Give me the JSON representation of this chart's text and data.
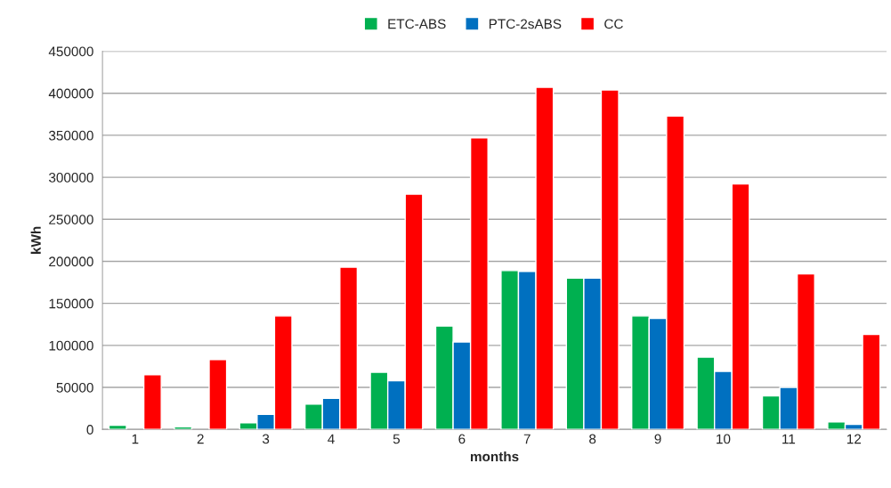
{
  "chart_data": {
    "type": "bar",
    "xlabel": "months",
    "ylabel": "kWh",
    "categories": [
      "1",
      "2",
      "3",
      "4",
      "5",
      "6",
      "7",
      "8",
      "9",
      "10",
      "11",
      "12"
    ],
    "series": [
      {
        "name": "ETC-ABS",
        "color": "#00b050",
        "values": [
          5000,
          3000,
          8000,
          30000,
          68000,
          123000,
          189000,
          180000,
          135000,
          86000,
          40000,
          9000
        ]
      },
      {
        "name": "PTC-2sABS",
        "color": "#0070c0",
        "values": [
          null,
          null,
          18000,
          37000,
          58000,
          104000,
          188000,
          180000,
          132000,
          69000,
          50000,
          6000
        ]
      },
      {
        "name": "CC",
        "color": "#ff0000",
        "values": [
          65000,
          83000,
          135000,
          193000,
          280000,
          347000,
          407000,
          404000,
          373000,
          292000,
          185000,
          113000
        ]
      }
    ],
    "ylim": [
      0,
      450000
    ],
    "yticks": [
      0,
      50000,
      100000,
      150000,
      200000,
      250000,
      300000,
      350000,
      400000,
      450000
    ],
    "grid": "y",
    "legend": "top"
  }
}
